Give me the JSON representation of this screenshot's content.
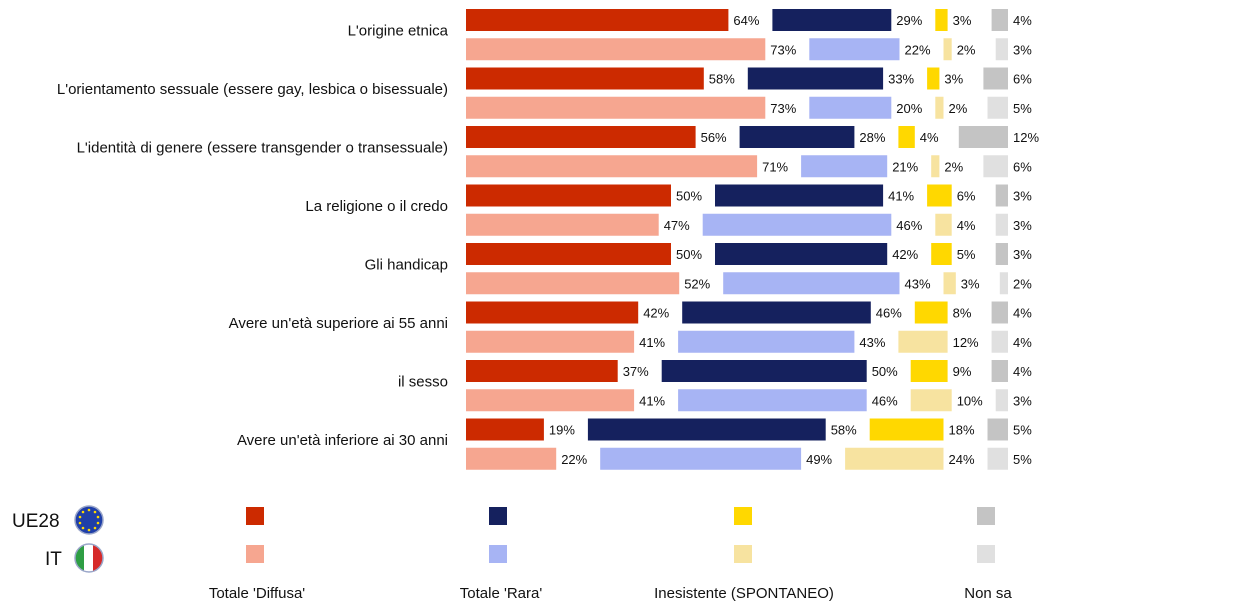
{
  "chart_data": {
    "type": "bar",
    "orientation": "horizontal-stacked",
    "categories": [
      "L'origine etnica",
      "L'orientamento sessuale (essere gay, lesbica o bisessuale)",
      "L'identità di genere (essere transgender o transessuale)",
      "La religione o il credo",
      "Gli handicap",
      "Avere un'età superiore ai 55 anni",
      "il sesso",
      "Avere un'età inferiore ai 30 anni"
    ],
    "segments": [
      {
        "name": "Totale 'Diffusa'",
        "colors": {
          "UE28": "#cc2a00",
          "IT": "#f6a690"
        }
      },
      {
        "name": "Totale 'Rara'",
        "colors": {
          "UE28": "#15215e",
          "IT": "#a7b4f4"
        }
      },
      {
        "name": "Inesistente (SPONTANEO)",
        "colors": {
          "UE28": "#ffd800",
          "IT": "#f7e3a0"
        }
      },
      {
        "name": "Non sa",
        "colors": {
          "UE28": "#c4c4c4",
          "IT": "#e0e0e0"
        }
      }
    ],
    "groups": [
      {
        "name": "UE28",
        "values": [
          [
            64,
            29,
            3,
            4
          ],
          [
            58,
            33,
            3,
            6
          ],
          [
            56,
            28,
            4,
            12
          ],
          [
            50,
            41,
            6,
            3
          ],
          [
            50,
            42,
            5,
            3
          ],
          [
            42,
            46,
            8,
            4
          ],
          [
            37,
            50,
            9,
            4
          ],
          [
            19,
            58,
            18,
            5
          ]
        ]
      },
      {
        "name": "IT",
        "values": [
          [
            73,
            22,
            2,
            3
          ],
          [
            73,
            20,
            2,
            5
          ],
          [
            71,
            21,
            2,
            6
          ],
          [
            47,
            46,
            4,
            3
          ],
          [
            52,
            43,
            3,
            2
          ],
          [
            41,
            43,
            12,
            4
          ],
          [
            41,
            46,
            10,
            3
          ],
          [
            22,
            49,
            24,
            5
          ]
        ]
      }
    ],
    "value_suffix": "%",
    "legend": {
      "position": "bottom",
      "rows": [
        "UE28",
        "IT"
      ]
    }
  }
}
